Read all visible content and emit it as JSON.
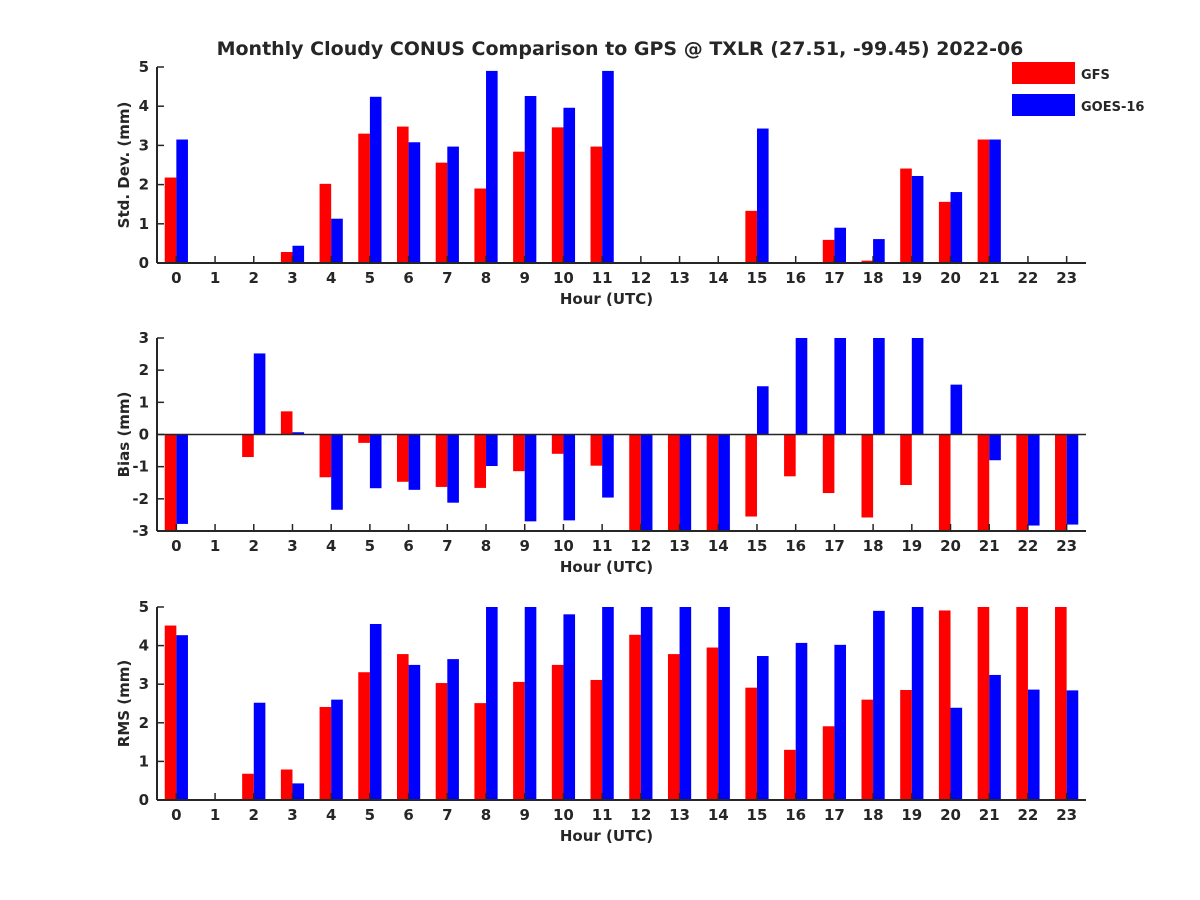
{
  "chart_data": {
    "type": "bar",
    "title": "Monthly Cloudy CONUS Comparison to GPS @ TXLR (27.51, -99.45) 2022-06",
    "legend": {
      "placement": "top-right"
    },
    "series_styles": [
      {
        "name": "GFS",
        "color": "#ff0000"
      },
      {
        "name": "GOES-16",
        "color": "#0000ff"
      }
    ],
    "panels": [
      {
        "ylabel": "Std. Dev. (mm)",
        "xlabel": "Hour (UTC)",
        "ylim": [
          0,
          5
        ],
        "yticks": [
          "0",
          "1",
          "2",
          "3",
          "4",
          "5"
        ],
        "categories": [
          "0",
          "1",
          "2",
          "3",
          "4",
          "5",
          "6",
          "7",
          "8",
          "9",
          "10",
          "11",
          "12",
          "13",
          "14",
          "15",
          "16",
          "17",
          "18",
          "19",
          "20",
          "21",
          "22",
          "23"
        ],
        "series": [
          {
            "name": "GFS",
            "values": [
              2.18,
              0,
              0,
              0.28,
              2.02,
              3.3,
              3.48,
              2.56,
              1.9,
              2.84,
              3.46,
              2.97,
              0,
              0,
              0,
              1.33,
              0,
              0.59,
              0.06,
              2.41,
              1.56,
              3.15,
              0,
              0
            ]
          },
          {
            "name": "GOES-16",
            "values": [
              3.15,
              0,
              0,
              0.44,
              1.13,
              4.24,
              3.08,
              2.97,
              4.9,
              4.26,
              3.96,
              4.9,
              0,
              0,
              0,
              3.43,
              0,
              0.9,
              0.61,
              2.22,
              1.81,
              3.15,
              0,
              0
            ]
          }
        ]
      },
      {
        "ylabel": "Bias (mm)",
        "xlabel": "Hour (UTC)",
        "ylim": [
          -3,
          3
        ],
        "yticks": [
          "-3",
          "-2",
          "-1",
          "0",
          "1",
          "2",
          "3"
        ],
        "categories": [
          "0",
          "1",
          "2",
          "3",
          "4",
          "5",
          "6",
          "7",
          "8",
          "9",
          "10",
          "11",
          "12",
          "13",
          "14",
          "15",
          "16",
          "17",
          "18",
          "19",
          "20",
          "21",
          "22",
          "23"
        ],
        "series": [
          {
            "name": "GFS",
            "values": [
              -3.0,
              0,
              -0.7,
              0.72,
              -1.33,
              -0.26,
              -1.47,
              -1.63,
              -1.66,
              -1.14,
              -0.6,
              -0.97,
              -3.0,
              -3.0,
              -3.0,
              -2.55,
              -1.3,
              -1.82,
              -2.58,
              -1.57,
              -3.0,
              -3.0,
              -3.0,
              -3.0
            ]
          },
          {
            "name": "GOES-16",
            "values": [
              -2.78,
              0,
              2.52,
              0.07,
              -2.34,
              -1.67,
              -1.72,
              -2.12,
              -0.98,
              -2.7,
              -2.67,
              -1.96,
              -3.0,
              -3.0,
              -3.0,
              1.5,
              3.0,
              3.0,
              3.0,
              3.0,
              1.55,
              -0.8,
              -2.83,
              -2.8
            ]
          }
        ]
      },
      {
        "ylabel": "RMS (mm)",
        "xlabel": "Hour (UTC)",
        "ylim": [
          0,
          5
        ],
        "yticks": [
          "0",
          "1",
          "2",
          "3",
          "4",
          "5"
        ],
        "categories": [
          "0",
          "1",
          "2",
          "3",
          "4",
          "5",
          "6",
          "7",
          "8",
          "9",
          "10",
          "11",
          "12",
          "13",
          "14",
          "15",
          "16",
          "17",
          "18",
          "19",
          "20",
          "21",
          "22",
          "23"
        ],
        "series": [
          {
            "name": "GFS",
            "values": [
              4.52,
              0,
              0.68,
              0.79,
              2.41,
              3.31,
              3.78,
              3.03,
              2.51,
              3.06,
              3.5,
              3.11,
              4.28,
              3.78,
              3.95,
              2.91,
              1.3,
              1.91,
              2.6,
              2.85,
              4.91,
              5.0,
              5.0,
              5.0
            ]
          },
          {
            "name": "GOES-16",
            "values": [
              4.27,
              0,
              2.52,
              0.43,
              2.6,
              4.56,
              3.5,
              3.65,
              5.0,
              5.0,
              4.81,
              5.0,
              5.0,
              5.0,
              5.0,
              3.73,
              4.07,
              4.02,
              4.9,
              5.0,
              2.39,
              3.24,
              2.86,
              2.84
            ]
          }
        ]
      }
    ]
  }
}
